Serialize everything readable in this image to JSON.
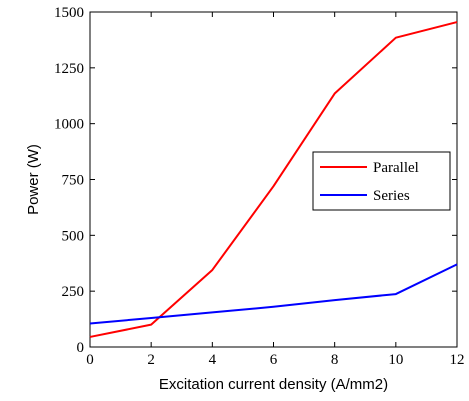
{
  "chart_data": {
    "type": "line",
    "xlabel": "Excitation current density (A/mm2)",
    "ylabel": "Power (W)",
    "xlim": [
      0,
      12
    ],
    "ylim": [
      0,
      1500
    ],
    "xticks": [
      0,
      2,
      4,
      6,
      8,
      10,
      12
    ],
    "yticks": [
      0,
      250,
      500,
      750,
      1000,
      1250,
      1500
    ],
    "grid": false,
    "legend_position": "right",
    "x": [
      0,
      2,
      4,
      6,
      8,
      10,
      12
    ],
    "series": [
      {
        "name": "Parallel",
        "color": "#ff0000",
        "values": [
          45,
          100,
          345,
          720,
          1135,
          1385,
          1455
        ]
      },
      {
        "name": "Series",
        "color": "#0000ff",
        "values": [
          105,
          130,
          155,
          180,
          210,
          237,
          370
        ]
      }
    ]
  }
}
